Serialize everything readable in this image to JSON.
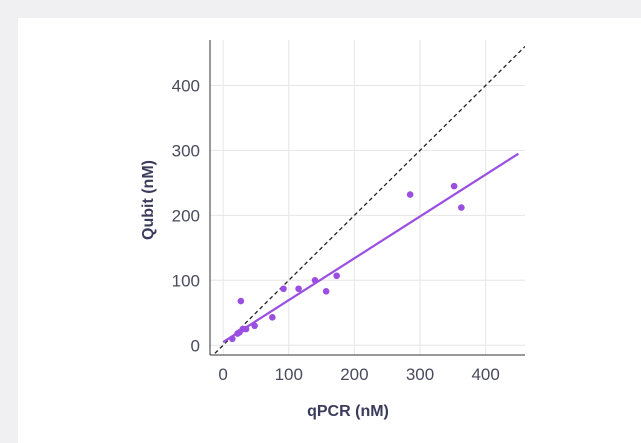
{
  "chart_data": {
    "type": "scatter",
    "title": "",
    "xlabel": "qPCR (nM)",
    "ylabel": "Qubit (nM)",
    "xlim": [
      -20,
      460
    ],
    "ylim": [
      -15,
      470
    ],
    "xticks": [
      0,
      100,
      200,
      300,
      400
    ],
    "yticks": [
      0,
      100,
      200,
      300,
      400
    ],
    "grid": true,
    "colors": {
      "points": "#9b4fe0",
      "fit": "#9b4fe0",
      "identity": "#222222",
      "grid": "#e6e6e6"
    },
    "series": [
      {
        "points": [
          {
            "x": 14,
            "y": 10
          },
          {
            "x": 22,
            "y": 18
          },
          {
            "x": 25,
            "y": 20
          },
          {
            "x": 27,
            "y": 68
          },
          {
            "x": 30,
            "y": 25
          },
          {
            "x": 35,
            "y": 25
          },
          {
            "x": 48,
            "y": 30
          },
          {
            "x": 75,
            "y": 43
          },
          {
            "x": 92,
            "y": 87
          },
          {
            "x": 115,
            "y": 87
          },
          {
            "x": 140,
            "y": 100
          },
          {
            "x": 157,
            "y": 83
          },
          {
            "x": 173,
            "y": 107
          },
          {
            "x": 285,
            "y": 232
          },
          {
            "x": 352,
            "y": 245
          },
          {
            "x": 363,
            "y": 212
          }
        ]
      }
    ],
    "fit_line": {
      "x": [
        0,
        450
      ],
      "y": [
        5,
        295
      ]
    },
    "identity_line": {
      "x": [
        -20,
        460
      ],
      "y": [
        -20,
        460
      ]
    }
  }
}
